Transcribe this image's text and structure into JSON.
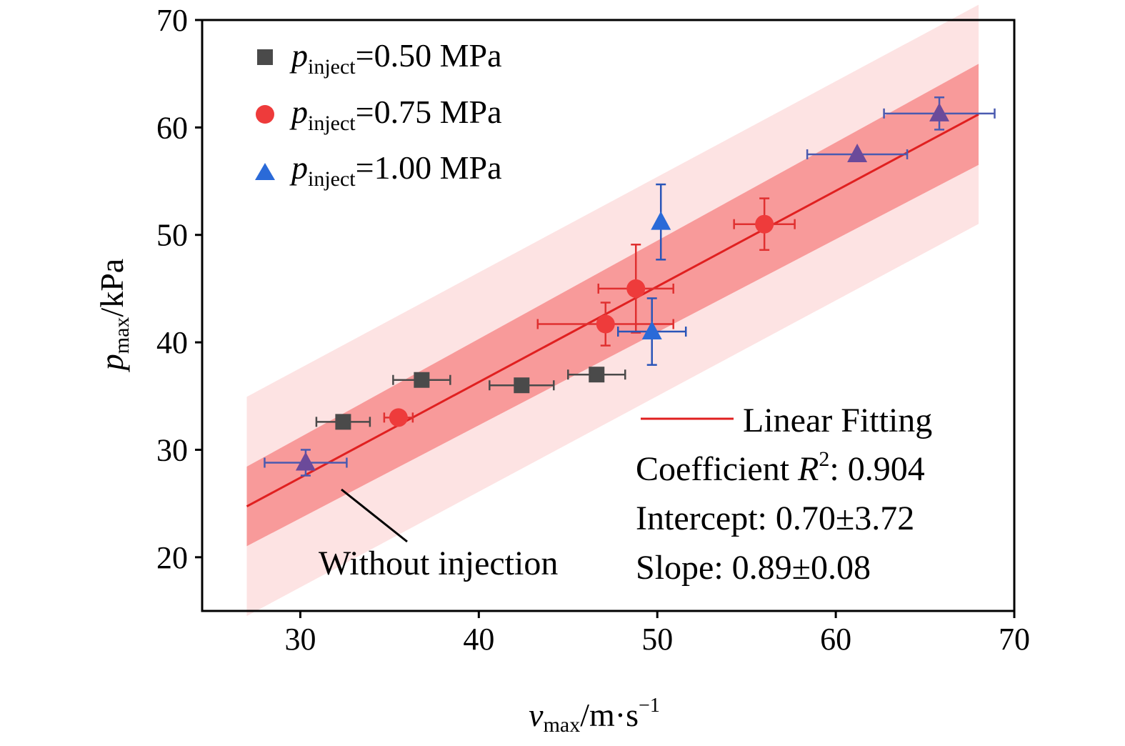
{
  "chart_data": {
    "type": "scatter",
    "xlabel": {
      "main": "v",
      "sub": "max",
      "rest": "/m·s",
      "sup": "−1"
    },
    "ylabel": {
      "main": "p",
      "sub": "max",
      "rest": "/kPa"
    },
    "xlim": [
      24.5,
      70
    ],
    "ylim": [
      15,
      70
    ],
    "xticks": [
      30,
      40,
      50,
      60,
      70
    ],
    "yticks": [
      20,
      30,
      40,
      50,
      60,
      70
    ],
    "legend_position": "top-left",
    "series": [
      {
        "name_main": "p",
        "name_sub": "inject",
        "name_rest": "=0.50 MPa",
        "marker": "square",
        "color": "#4a4a4a",
        "errcolor": "#4a4a4a",
        "points": [
          {
            "x": 32.4,
            "y": 32.6,
            "xerr": 1.5,
            "yerr": 0
          },
          {
            "x": 36.8,
            "y": 36.5,
            "xerr": 1.6,
            "yerr": 0
          },
          {
            "x": 42.4,
            "y": 36.0,
            "xerr": 1.8,
            "yerr": 0
          },
          {
            "x": 46.6,
            "y": 37.0,
            "xerr": 1.6,
            "yerr": 0
          }
        ]
      },
      {
        "name_main": "p",
        "name_sub": "inject",
        "name_rest": "=0.75 MPa",
        "marker": "circle",
        "color": "#ee3b3b",
        "errcolor": "#e03030",
        "points": [
          {
            "x": 35.5,
            "y": 33.0,
            "xerr": 0.8,
            "yerr": 0
          },
          {
            "x": 47.1,
            "y": 41.7,
            "xerr": 3.8,
            "yerr": 2.0
          },
          {
            "x": 48.8,
            "y": 45.0,
            "xerr": 2.1,
            "yerr": 4.1
          },
          {
            "x": 56.0,
            "y": 51.0,
            "xerr": 1.7,
            "yerr": 2.4
          }
        ]
      },
      {
        "name_main": "p",
        "name_sub": "inject",
        "name_rest": "=1.00 MPa",
        "marker": "triangle",
        "color": "#2a6ad8",
        "errcolor": "#2a55b8",
        "points": [
          {
            "x": 49.7,
            "y": 41.0,
            "xerr": 1.9,
            "yerr": 3.1
          },
          {
            "x": 50.2,
            "y": 51.2,
            "xerr": 0,
            "yerr": 3.5
          }
        ]
      },
      {
        "name": "Without injection",
        "marker": "triangle",
        "color": "#6b4a9a",
        "errcolor": "#4a5ab0",
        "points": [
          {
            "x": 30.3,
            "y": 28.8,
            "xerr": 2.3,
            "yerr": 1.2
          },
          {
            "x": 61.2,
            "y": 57.5,
            "xerr": 2.8,
            "yerr": 0
          },
          {
            "x": 65.8,
            "y": 61.3,
            "xerr": 3.1,
            "yerr": 1.5
          }
        ]
      }
    ],
    "fit": {
      "legend_label": "Linear Fitting",
      "intercept": 0.7,
      "slope": 0.89,
      "x_range": [
        27,
        68
      ],
      "confidence_band_halfwidth": [
        3.7,
        4.7
      ],
      "prediction_band_halfwidth": [
        10.2,
        10.2
      ],
      "line_color": "#e02020",
      "confidence_color": "#f89a9a",
      "prediction_color": "#fde3e3"
    },
    "annotations": {
      "callout_text": "Without injection",
      "r2_prefix": "Coefficient ",
      "r2_symbol": "R",
      "r2_sup": "2",
      "r2_value": ": 0.904",
      "intercept_text": "Intercept: 0.70±3.72",
      "slope_text": "Slope: 0.89±0.08"
    }
  }
}
